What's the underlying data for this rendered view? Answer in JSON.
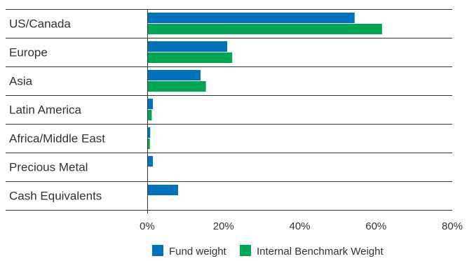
{
  "chart_data": {
    "type": "bar",
    "orientation": "horizontal",
    "categories": [
      "US/Canada",
      "Europe",
      "Asia",
      "Latin America",
      "Africa/Middle East",
      "Precious Metal",
      "Cash Equivalents"
    ],
    "series": [
      {
        "name": "Fund weight",
        "color": "#0072bc",
        "values": [
          54.2,
          20.8,
          13.8,
          1.3,
          0.6,
          1.3,
          7.9
        ]
      },
      {
        "name": "Internal Benchmark Weight",
        "color": "#00a651",
        "values": [
          61.4,
          22.1,
          15.2,
          1.0,
          0.5,
          null,
          null
        ]
      }
    ],
    "x_ticks": [
      0,
      20,
      40,
      60,
      80
    ],
    "x_tick_labels": [
      "0%",
      "20%",
      "40%",
      "60%",
      "80%"
    ],
    "xlim": [
      0,
      80
    ],
    "title": "",
    "xlabel": "",
    "ylabel": "",
    "legend_position": "bottom",
    "grid": "horizontal category separators"
  }
}
